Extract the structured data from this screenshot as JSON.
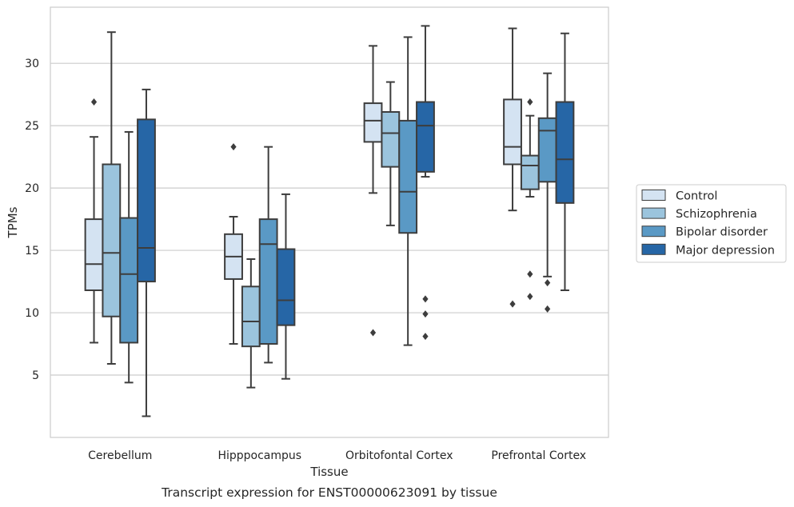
{
  "chart_data": {
    "type": "box",
    "caption": "Transcript expression for ENST00000623091 by tissue",
    "xlabel": "Tissue",
    "ylabel": "TPMs",
    "ylim": [
      0,
      34.5
    ],
    "yticks": [
      5,
      10,
      15,
      20,
      25,
      30
    ],
    "grid": "horizontal",
    "legend_position": "right",
    "categories": [
      "Cerebellum",
      "Hipppocampus",
      "Orbitofontal Cortex",
      "Prefrontal Cortex"
    ],
    "series": [
      {
        "name": "Control",
        "color": "#d4e3f2",
        "boxes": [
          {
            "whislo": 7.6,
            "q1": 11.8,
            "med": 13.9,
            "q3": 17.5,
            "whishi": 24.1,
            "fliers": [
              26.9
            ]
          },
          {
            "whislo": 7.5,
            "q1": 12.7,
            "med": 14.5,
            "q3": 16.3,
            "whishi": 17.7,
            "fliers": [
              23.3
            ]
          },
          {
            "whislo": 19.6,
            "q1": 23.7,
            "med": 25.4,
            "q3": 26.8,
            "whishi": 31.4,
            "fliers": [
              8.4
            ]
          },
          {
            "whislo": 18.2,
            "q1": 21.9,
            "med": 23.3,
            "q3": 27.1,
            "whishi": 32.8,
            "fliers": [
              10.7
            ]
          }
        ]
      },
      {
        "name": "Schizophrenia",
        "color": "#9bc4dd",
        "boxes": [
          {
            "whislo": 5.9,
            "q1": 9.7,
            "med": 14.8,
            "q3": 21.9,
            "whishi": 32.5,
            "fliers": []
          },
          {
            "whislo": 4.0,
            "q1": 7.3,
            "med": 9.3,
            "q3": 12.1,
            "whishi": 14.3,
            "fliers": []
          },
          {
            "whislo": 17.0,
            "q1": 21.7,
            "med": 24.4,
            "q3": 26.1,
            "whishi": 28.5,
            "fliers": []
          },
          {
            "whislo": 19.3,
            "q1": 19.9,
            "med": 21.8,
            "q3": 22.6,
            "whishi": 25.8,
            "fliers": [
              26.9,
              13.1,
              11.3
            ]
          }
        ]
      },
      {
        "name": "Bipolar disorder",
        "color": "#5a99c5",
        "boxes": [
          {
            "whislo": 4.4,
            "q1": 7.6,
            "med": 13.1,
            "q3": 17.6,
            "whishi": 24.5,
            "fliers": []
          },
          {
            "whislo": 6.0,
            "q1": 7.5,
            "med": 15.5,
            "q3": 17.5,
            "whishi": 23.3,
            "fliers": []
          },
          {
            "whislo": 7.4,
            "q1": 16.4,
            "med": 19.7,
            "q3": 25.4,
            "whishi": 32.1,
            "fliers": []
          },
          {
            "whislo": 12.9,
            "q1": 20.5,
            "med": 24.6,
            "q3": 25.6,
            "whishi": 29.2,
            "fliers": [
              12.4,
              10.3
            ]
          }
        ]
      },
      {
        "name": "Major depression",
        "color": "#2666a6",
        "boxes": [
          {
            "whislo": 1.7,
            "q1": 12.5,
            "med": 15.2,
            "q3": 25.5,
            "whishi": 27.9,
            "fliers": []
          },
          {
            "whislo": 4.7,
            "q1": 9.0,
            "med": 11.0,
            "q3": 15.1,
            "whishi": 19.5,
            "fliers": []
          },
          {
            "whislo": 20.9,
            "q1": 21.3,
            "med": 25.0,
            "q3": 26.9,
            "whishi": 33.0,
            "fliers": [
              11.1,
              9.9,
              8.1
            ]
          },
          {
            "whislo": 11.8,
            "q1": 18.8,
            "med": 22.3,
            "q3": 26.9,
            "whishi": 32.4,
            "fliers": []
          }
        ]
      }
    ]
  }
}
